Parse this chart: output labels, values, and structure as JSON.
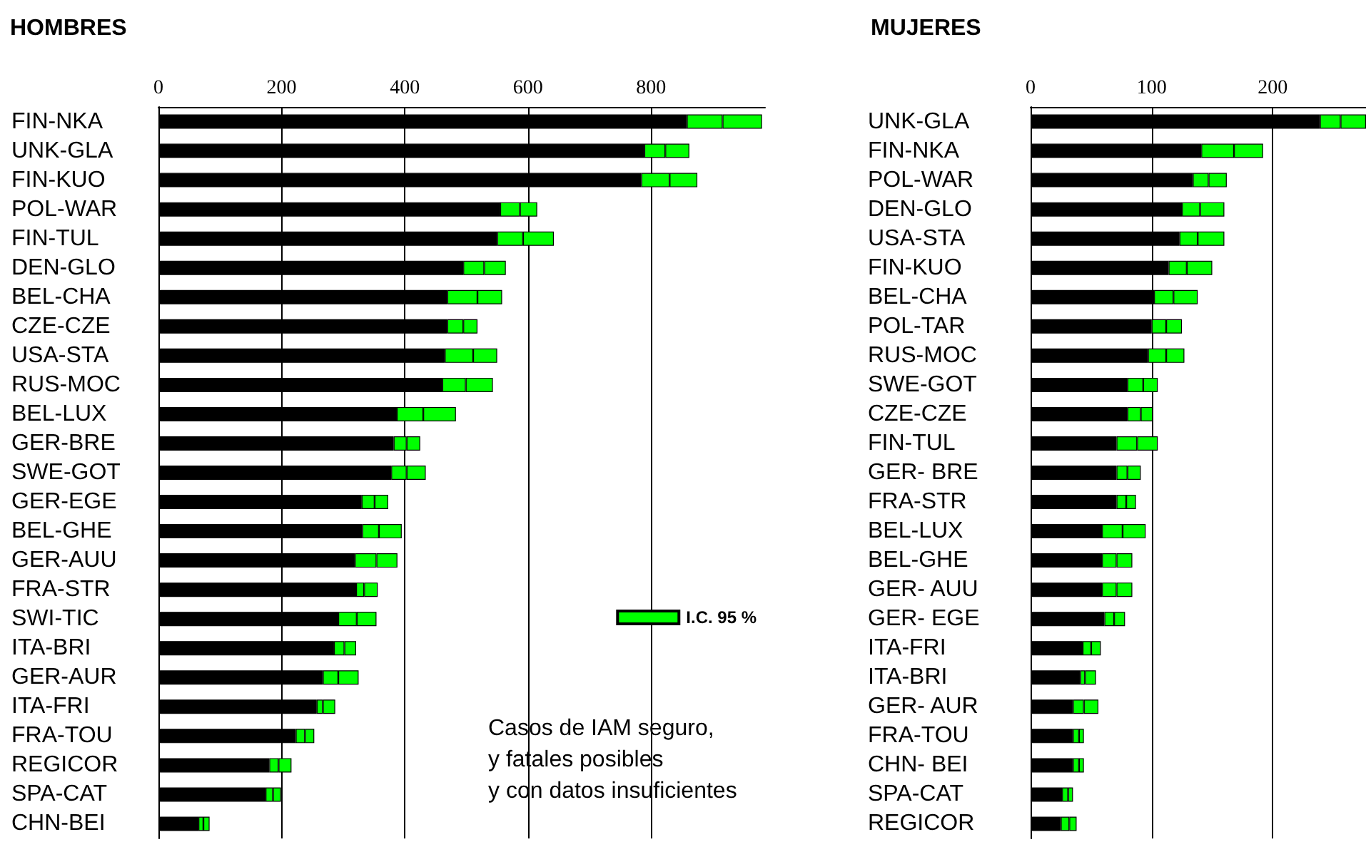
{
  "chart_data": [
    {
      "type": "bar",
      "title": "HOMBRES",
      "orientation": "horizontal",
      "stacked": true,
      "grid": "x",
      "legend": "right",
      "categories": [
        "FIN-NKA",
        "UNK-GLA",
        "FIN-KUO",
        "POL-WAR",
        "FIN-TUL",
        "DEN-GLO",
        "BEL-CHA",
        "CZE-CZE",
        "USA-STA",
        "RUS-MOC",
        "BEL-LUX",
        "GER-BRE",
        "SWE-GOT",
        "GER-EGE",
        "BEL-GHE",
        "GER-AUU",
        "FRA-STR",
        "SWI-TIC",
        "ITA-BRI",
        "GER-AUR",
        "ITA-FRI",
        "FRA-TOU",
        "REGICOR",
        "SPA-CAT",
        "CHN-BEI"
      ],
      "series": [
        {
          "color": "#000000",
          "values": [
            858,
            789,
            784,
            555,
            550,
            495,
            469,
            469,
            465,
            461,
            387,
            382,
            378,
            330,
            331,
            319,
            321,
            292,
            285,
            267,
            257,
            223,
            180,
            174,
            65
          ]
        },
        {
          "name": "I.C. 95 %",
          "color": "#00ff00",
          "values": [
            58,
            34,
            46,
            32,
            42,
            34,
            49,
            26,
            46,
            38,
            43,
            21,
            25,
            21,
            27,
            35,
            13,
            30,
            17,
            25,
            10,
            15,
            15,
            12,
            8
          ]
        },
        {
          "color": "#00ff00",
          "values": [
            64,
            39,
            45,
            28,
            50,
            35,
            40,
            23,
            39,
            44,
            53,
            22,
            31,
            22,
            37,
            34,
            22,
            32,
            19,
            33,
            20,
            15,
            21,
            13,
            10
          ]
        }
      ],
      "xlim": [
        0,
        985
      ],
      "xticks": [
        0,
        200,
        400,
        600,
        800
      ],
      "annotations": [
        "Casos de IAM seguro,\ny fatales posibles\ny con datos insuficientes"
      ]
    },
    {
      "type": "bar",
      "title": "MUJERES",
      "orientation": "horizontal",
      "stacked": true,
      "grid": "x",
      "categories": [
        "UNK-GLA",
        "FIN-NKA",
        "POL-WAR",
        "DEN-GLO",
        "USA-STA",
        "FIN-KUO",
        "BEL-CHA",
        "POL-TAR",
        "RUS-MOC",
        "SWE-GOT",
        "CZE-CZE",
        "FIN-TUL",
        "GER- BRE",
        "FRA-STR",
        "BEL-LUX",
        "BEL-GHE",
        "GER- AUU",
        "GER- EGE",
        "ITA-FRI",
        "ITA-BRI",
        "GER- AUR",
        "FRA-TOU",
        "CHN- BEI",
        "SPA-CAT",
        "REGICOR"
      ],
      "series": [
        {
          "color": "#000000",
          "values": [
            239,
            141,
            134,
            125,
            123,
            114,
            102,
            100,
            97,
            80,
            80,
            71,
            71,
            71,
            59,
            59,
            59,
            61,
            43,
            41,
            35,
            35,
            35,
            26,
            25
          ]
        },
        {
          "color": "#00ff00",
          "values": [
            17,
            27,
            13,
            15,
            15,
            15,
            16,
            12,
            15,
            13,
            11,
            17,
            9,
            8,
            17,
            12,
            12,
            8,
            7,
            4,
            9,
            5,
            5,
            5,
            7
          ]
        },
        {
          "color": "#00ff00",
          "values": [
            21,
            24,
            15,
            20,
            22,
            21,
            20,
            13,
            15,
            12,
            10,
            17,
            11,
            8,
            19,
            13,
            13,
            9,
            8,
            9,
            12,
            4,
            4,
            4,
            6
          ]
        }
      ],
      "xlim": [
        0,
        277
      ],
      "xticks": [
        0,
        100,
        200
      ]
    }
  ]
}
